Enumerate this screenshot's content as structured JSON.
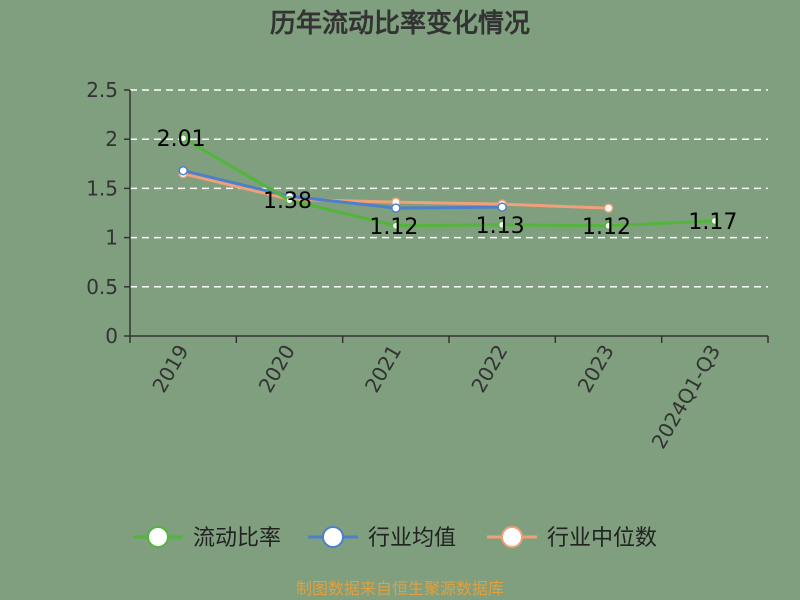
{
  "chart_data": {
    "type": "line",
    "title": "历年流动比率变化情况",
    "categories": [
      "2019",
      "2020",
      "2021",
      "2022",
      "2023",
      "2024Q1-Q3"
    ],
    "y_ticks": [
      "0",
      "0.5",
      "1",
      "1.5",
      "2",
      "2.5"
    ],
    "ylim": [
      0,
      2.5
    ],
    "grid": true,
    "legend_position": "bottom",
    "series": [
      {
        "name": "流动比率",
        "color": "#52b63a",
        "values": [
          2.01,
          1.38,
          1.12,
          1.13,
          1.12,
          1.17
        ],
        "labels": [
          "2.01",
          "1.38",
          "1.12",
          "1.13",
          "1.12",
          "1.17"
        ]
      },
      {
        "name": "行业均值",
        "color": "#4e7fc9",
        "values": [
          1.68,
          1.42,
          1.3,
          1.31,
          null,
          null
        ]
      },
      {
        "name": "行业中位数",
        "color": "#f0a07a",
        "values": [
          1.65,
          1.39,
          1.36,
          1.34,
          1.3,
          null
        ]
      }
    ]
  },
  "source": "制图数据来自恒生聚源数据库"
}
